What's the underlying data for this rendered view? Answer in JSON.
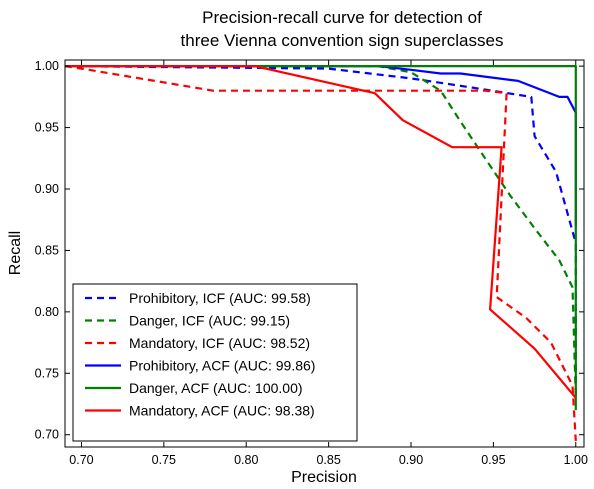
{
  "chart_data": {
    "type": "line",
    "title": [
      "Precision-recall curve for detection of",
      "three Vienna convention sign superclasses"
    ],
    "xlabel": "Precision",
    "ylabel": "Recall",
    "xlim": [
      0.69,
      1.005
    ],
    "ylim": [
      0.69,
      1.005
    ],
    "xticks": [
      "0.70",
      "0.75",
      "0.80",
      "0.85",
      "0.90",
      "0.95",
      "1.00"
    ],
    "yticks": [
      "0.70",
      "0.75",
      "0.80",
      "0.85",
      "0.90",
      "0.95",
      "1.00"
    ],
    "grid": false,
    "legend_position": "lower-left",
    "series": [
      {
        "name": "Prohibitory, ICF (AUC: 99.58)",
        "color": "#0000ff",
        "dash": "dashed",
        "points": [
          [
            0.69,
            1.0
          ],
          [
            0.85,
            0.998
          ],
          [
            0.9,
            0.99
          ],
          [
            0.94,
            0.982
          ],
          [
            0.973,
            0.975
          ],
          [
            0.975,
            0.943
          ],
          [
            0.988,
            0.914
          ],
          [
            1.0,
            0.856
          ],
          [
            1.0,
            0.73
          ]
        ]
      },
      {
        "name": "Danger, ICF (AUC: 99.15)",
        "color": "#008000",
        "dash": "dashed",
        "points": [
          [
            0.69,
            1.0
          ],
          [
            0.88,
            1.0
          ],
          [
            0.9,
            0.995
          ],
          [
            0.918,
            0.98
          ],
          [
            0.93,
            0.955
          ],
          [
            0.945,
            0.925
          ],
          [
            0.96,
            0.895
          ],
          [
            0.975,
            0.868
          ],
          [
            0.99,
            0.842
          ],
          [
            0.998,
            0.82
          ],
          [
            1.0,
            0.73
          ]
        ]
      },
      {
        "name": "Mandatory, ICF (AUC: 98.52)",
        "color": "#ff0000",
        "dash": "dashed",
        "points": [
          [
            0.69,
            1.0
          ],
          [
            0.7,
            0.998
          ],
          [
            0.78,
            0.98
          ],
          [
            0.945,
            0.98
          ],
          [
            0.958,
            0.978
          ],
          [
            0.952,
            0.812
          ],
          [
            0.97,
            0.795
          ],
          [
            0.985,
            0.775
          ],
          [
            0.998,
            0.74
          ],
          [
            1.0,
            0.695
          ]
        ]
      },
      {
        "name": "Prohibitory, ACF (AUC: 99.86)",
        "color": "#0000ff",
        "dash": "solid",
        "points": [
          [
            0.69,
            1.0
          ],
          [
            0.88,
            1.0
          ],
          [
            0.9,
            0.997
          ],
          [
            0.918,
            0.994
          ],
          [
            0.93,
            0.994
          ],
          [
            0.965,
            0.988
          ],
          [
            0.99,
            0.975
          ],
          [
            0.995,
            0.975
          ],
          [
            1.0,
            0.962
          ],
          [
            1.0,
            0.87
          ]
        ]
      },
      {
        "name": "Danger, ACF (AUC: 100.00)",
        "color": "#008000",
        "dash": "solid",
        "points": [
          [
            0.69,
            1.0
          ],
          [
            1.0,
            1.0
          ],
          [
            1.0,
            0.72
          ]
        ]
      },
      {
        "name": "Mandatory, ACF (AUC: 98.38)",
        "color": "#ff0000",
        "dash": "solid",
        "points": [
          [
            0.69,
            1.0
          ],
          [
            0.805,
            1.0
          ],
          [
            0.878,
            0.978
          ],
          [
            0.895,
            0.956
          ],
          [
            0.925,
            0.934
          ],
          [
            0.955,
            0.934
          ],
          [
            0.948,
            0.802
          ],
          [
            0.975,
            0.77
          ],
          [
            1.0,
            0.73
          ]
        ]
      }
    ]
  }
}
